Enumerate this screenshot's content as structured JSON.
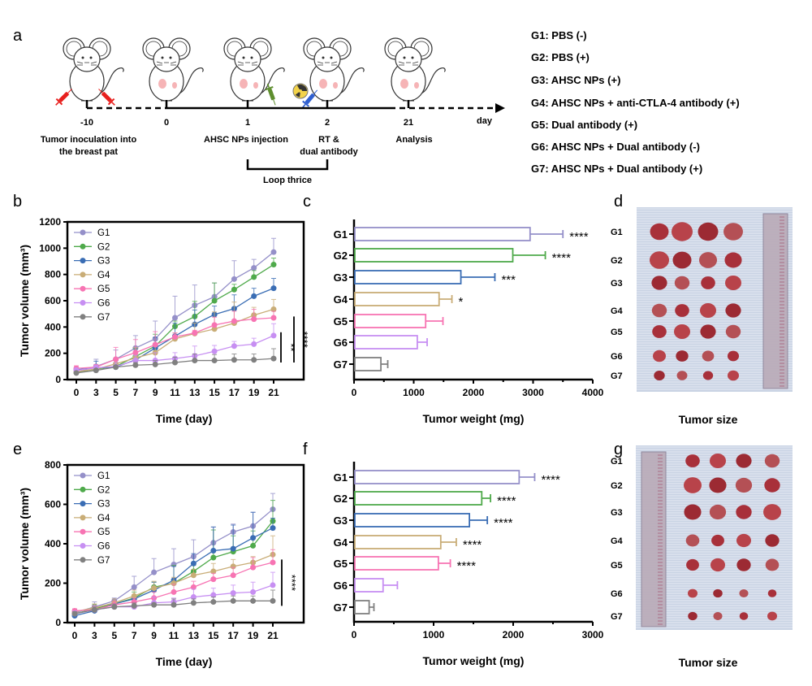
{
  "panel_labels": {
    "a": "a",
    "b": "b",
    "c": "c",
    "d": "d",
    "e": "e",
    "f": "f",
    "g": "g"
  },
  "panel_a": {
    "days": [
      "-10",
      "0",
      "1",
      "2",
      "21"
    ],
    "day_unit": "day",
    "events": {
      "inoculation_line1": "Tumor inoculation into",
      "inoculation_line2": "the breast pat",
      "injection": "AHSC NPs  injection",
      "rt_line1": "RT &",
      "rt_line2": "dual antibody",
      "analysis": "Analysis"
    },
    "loop_label": "Loop thrice",
    "icons": [
      "mouse-icon",
      "syringe-icon",
      "radiation-icon"
    ]
  },
  "group_legend": [
    "G1: PBS (-)",
    "G2: PBS (+)",
    "G3: AHSC NPs (+)",
    "G4: AHSC NPs + anti-CTLA-4 antibody (+)",
    "G5: Dual antibody (+)",
    "G6: AHSC NPs + Dual antibody (-)",
    "G7: AHSC NPs + Dual antibody (+)"
  ],
  "colors": {
    "G1": "#9590c9",
    "G2": "#4faa4b",
    "G3": "#3a6db4",
    "G4": "#c9ad77",
    "G5": "#f774b3",
    "G6": "#c78ff2",
    "G7": "#808080"
  },
  "chart_data": [
    {
      "panel": "b",
      "type": "line",
      "xlabel": "Time (day)",
      "ylabel": "Tumor volume (mm³)",
      "categories": [
        "0",
        "3",
        "5",
        "7",
        "9",
        "11",
        "13",
        "15",
        "17",
        "19",
        "21"
      ],
      "ylim": [
        0,
        1200
      ],
      "yticks": [
        "0",
        "200",
        "400",
        "600",
        "800",
        "1000",
        "1200"
      ],
      "legend_position": "top-left",
      "series": [
        {
          "name": "G1",
          "values": [
            55,
            100,
            155,
            240,
            310,
            470,
            565,
            630,
            765,
            850,
            970
          ],
          "err": [
            40,
            55,
            70,
            95,
            135,
            165,
            155,
            105,
            140,
            65,
            105
          ]
        },
        {
          "name": "G2",
          "values": [
            55,
            80,
            100,
            175,
            255,
            405,
            480,
            600,
            685,
            780,
            875
          ],
          "err": [
            20,
            30,
            50,
            60,
            90,
            40,
            115,
            135,
            40,
            50,
            50
          ]
        },
        {
          "name": "G3",
          "values": [
            75,
            90,
            95,
            150,
            240,
            330,
            420,
            495,
            540,
            635,
            695
          ],
          "err": [
            15,
            50,
            50,
            60,
            80,
            100,
            110,
            65,
            105,
            60,
            75
          ]
        },
        {
          "name": "G4",
          "values": [
            60,
            80,
            120,
            165,
            205,
            310,
            350,
            385,
            430,
            490,
            535
          ],
          "err": [
            15,
            25,
            40,
            80,
            60,
            45,
            80,
            130,
            160,
            60,
            75
          ]
        },
        {
          "name": "G5",
          "values": [
            85,
            95,
            155,
            205,
            265,
            325,
            355,
            415,
            445,
            460,
            470
          ],
          "err": [
            20,
            20,
            90,
            100,
            100,
            30,
            20,
            60,
            75,
            75,
            50
          ]
        },
        {
          "name": "G6",
          "values": [
            70,
            90,
            100,
            145,
            145,
            160,
            180,
            215,
            255,
            270,
            335
          ],
          "err": [
            20,
            20,
            30,
            40,
            60,
            45,
            75,
            45,
            35,
            45,
            90
          ]
        },
        {
          "name": "G7",
          "values": [
            50,
            70,
            95,
            110,
            115,
            130,
            145,
            145,
            150,
            150,
            160
          ],
          "err": [
            10,
            10,
            10,
            20,
            30,
            40,
            50,
            45,
            45,
            45,
            75
          ]
        }
      ],
      "significance": [
        {
          "label": "**",
          "range": [
            130,
            360
          ]
        },
        {
          "label": "****",
          "range": [
            130,
            480
          ]
        }
      ]
    },
    {
      "panel": "c",
      "type": "bar",
      "orientation": "horizontal",
      "xlabel": "Tumor weight (mg)",
      "categories": [
        "G1",
        "G2",
        "G3",
        "G4",
        "G5",
        "G6",
        "G7"
      ],
      "values": [
        2950,
        2660,
        1790,
        1425,
        1200,
        1060,
        450
      ],
      "err": [
        550,
        545,
        570,
        215,
        290,
        165,
        115
      ],
      "significance": [
        "****",
        "****",
        "***",
        "*",
        "",
        "",
        ""
      ],
      "xlim": [
        0,
        4000
      ],
      "xticks": [
        "0",
        "1000",
        "2000",
        "3000",
        "4000"
      ]
    },
    {
      "panel": "e",
      "type": "line",
      "xlabel": "Time (day)",
      "ylabel": "Tumor volume (mm³)",
      "categories": [
        "0",
        "3",
        "5",
        "7",
        "9",
        "11",
        "13",
        "15",
        "17",
        "19",
        "21"
      ],
      "ylim": [
        0,
        800
      ],
      "yticks": [
        "0",
        "200",
        "400",
        "600",
        "800"
      ],
      "legend_position": "top-left",
      "series": [
        {
          "name": "G1",
          "values": [
            50,
            80,
            110,
            180,
            255,
            295,
            335,
            405,
            460,
            490,
            575
          ],
          "err": [
            20,
            25,
            15,
            55,
            70,
            80,
            85,
            80,
            40,
            70,
            80
          ]
        },
        {
          "name": "G2",
          "values": [
            45,
            70,
            95,
            125,
            180,
            200,
            260,
            330,
            360,
            390,
            515
          ],
          "err": [
            15,
            20,
            15,
            30,
            25,
            90,
            30,
            140,
            80,
            75,
            105
          ]
        },
        {
          "name": "G3",
          "values": [
            35,
            60,
            95,
            120,
            165,
            215,
            300,
            365,
            375,
            430,
            480
          ],
          "err": [
            15,
            15,
            15,
            20,
            40,
            70,
            50,
            120,
            120,
            130,
            50
          ]
        },
        {
          "name": "G4",
          "values": [
            55,
            75,
            100,
            135,
            175,
            200,
            240,
            260,
            285,
            305,
            345
          ],
          "err": [
            10,
            20,
            20,
            30,
            35,
            30,
            30,
            40,
            35,
            30,
            95
          ]
        },
        {
          "name": "G5",
          "values": [
            60,
            65,
            90,
            105,
            125,
            155,
            180,
            220,
            240,
            280,
            305
          ],
          "err": [
            10,
            20,
            20,
            20,
            30,
            40,
            30,
            30,
            40,
            50,
            65
          ]
        },
        {
          "name": "G6",
          "values": [
            45,
            65,
            80,
            80,
            100,
            105,
            130,
            140,
            150,
            155,
            190
          ],
          "err": [
            15,
            20,
            15,
            15,
            30,
            20,
            40,
            35,
            40,
            50,
            65
          ]
        },
        {
          "name": "G7",
          "values": [
            45,
            65,
            80,
            85,
            90,
            90,
            100,
            105,
            110,
            110,
            110
          ],
          "err": [
            10,
            15,
            15,
            15,
            10,
            30,
            20,
            25,
            25,
            25,
            55
          ]
        }
      ],
      "significance": [
        {
          "label": "****",
          "range": [
            85,
            320
          ]
        }
      ]
    },
    {
      "panel": "f",
      "type": "bar",
      "orientation": "horizontal",
      "xlabel": "Tumor weight (mg)",
      "categories": [
        "G1",
        "G2",
        "G3",
        "G4",
        "G5",
        "G6",
        "G7"
      ],
      "values": [
        2075,
        1605,
        1450,
        1090,
        1060,
        365,
        190
      ],
      "err": [
        195,
        110,
        225,
        195,
        150,
        180,
        60
      ],
      "significance": [
        "****",
        "****",
        "****",
        "****",
        "****",
        "",
        ""
      ],
      "xlim": [
        0,
        3000
      ],
      "xticks": [
        "0",
        "1000",
        "2000",
        "3000"
      ]
    }
  ],
  "panel_d": {
    "row_labels": [
      "G1",
      "G2",
      "G3",
      "G4",
      "G5",
      "G6",
      "G7"
    ],
    "caption": "Tumor size"
  },
  "panel_g": {
    "row_labels": [
      "G1",
      "G2",
      "G3",
      "G4",
      "G5",
      "G6",
      "G7"
    ],
    "caption": "Tumor size"
  }
}
